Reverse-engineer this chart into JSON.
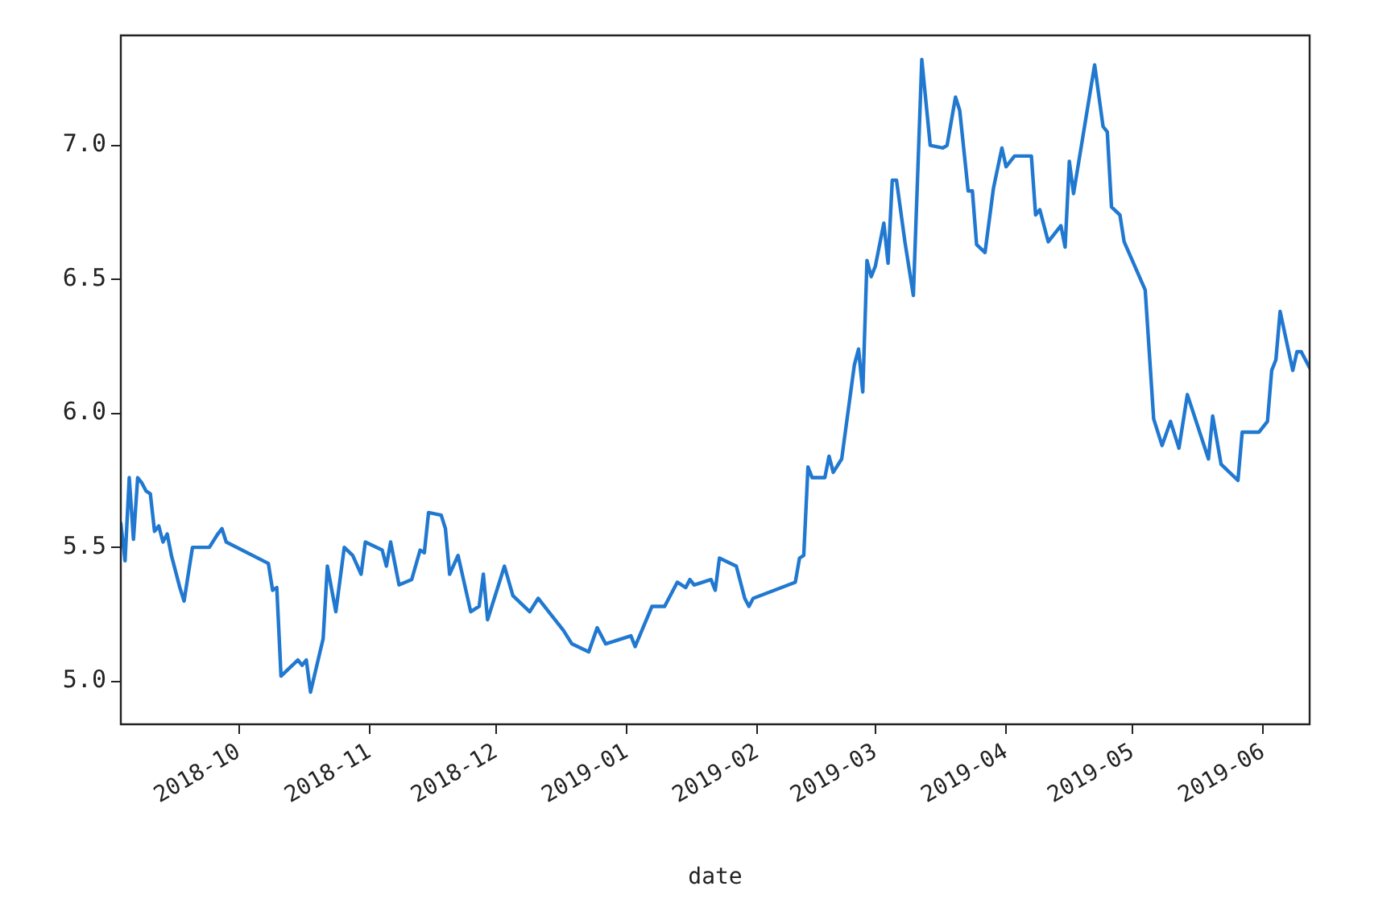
{
  "chart_data": {
    "type": "line",
    "xlabel": "date",
    "x": [
      "2018-09-03",
      "2018-09-04",
      "2018-09-05",
      "2018-09-06",
      "2018-09-07",
      "2018-09-08",
      "2018-09-09",
      "2018-09-10",
      "2018-09-11",
      "2018-09-12",
      "2018-09-13",
      "2018-09-14",
      "2018-09-15",
      "2018-09-17",
      "2018-09-18",
      "2018-09-20",
      "2018-09-24",
      "2018-09-26",
      "2018-09-27",
      "2018-09-28",
      "2018-10-08",
      "2018-10-09",
      "2018-10-10",
      "2018-10-11",
      "2018-10-13",
      "2018-10-15",
      "2018-10-16",
      "2018-10-17",
      "2018-10-18",
      "2018-10-21",
      "2018-10-22",
      "2018-10-24",
      "2018-10-26",
      "2018-10-28",
      "2018-10-30",
      "2018-10-31",
      "2018-11-04",
      "2018-11-05",
      "2018-11-06",
      "2018-11-08",
      "2018-11-11",
      "2018-11-13",
      "2018-11-14",
      "2018-11-15",
      "2018-11-18",
      "2018-11-19",
      "2018-11-20",
      "2018-11-22",
      "2018-11-25",
      "2018-11-27",
      "2018-11-28",
      "2018-11-29",
      "2018-12-03",
      "2018-12-05",
      "2018-12-09",
      "2018-12-11",
      "2018-12-12",
      "2018-12-17",
      "2018-12-19",
      "2018-12-23",
      "2018-12-25",
      "2018-12-27",
      "2019-01-02",
      "2019-01-03",
      "2019-01-07",
      "2019-01-10",
      "2019-01-13",
      "2019-01-15",
      "2019-01-16",
      "2019-01-17",
      "2019-01-21",
      "2019-01-22",
      "2019-01-23",
      "2019-01-27",
      "2019-01-29",
      "2019-01-30",
      "2019-01-31",
      "2019-02-10",
      "2019-02-11",
      "2019-02-12",
      "2019-02-13",
      "2019-02-14",
      "2019-02-17",
      "2019-02-18",
      "2019-02-19",
      "2019-02-21",
      "2019-02-24",
      "2019-02-25",
      "2019-02-26",
      "2019-02-27",
      "2019-02-28",
      "2019-03-01",
      "2019-03-03",
      "2019-03-04",
      "2019-03-05",
      "2019-03-06",
      "2019-03-08",
      "2019-03-10",
      "2019-03-12",
      "2019-03-14",
      "2019-03-17",
      "2019-03-18",
      "2019-03-20",
      "2019-03-21",
      "2019-03-23",
      "2019-03-24",
      "2019-03-25",
      "2019-03-27",
      "2019-03-29",
      "2019-03-31",
      "2019-04-01",
      "2019-04-03",
      "2019-04-07",
      "2019-04-08",
      "2019-04-09",
      "2019-04-11",
      "2019-04-14",
      "2019-04-15",
      "2019-04-16",
      "2019-04-17",
      "2019-04-22",
      "2019-04-24",
      "2019-04-25",
      "2019-04-26",
      "2019-04-28",
      "2019-04-29",
      "2019-05-04",
      "2019-05-06",
      "2019-05-08",
      "2019-05-10",
      "2019-05-12",
      "2019-05-14",
      "2019-05-19",
      "2019-05-20",
      "2019-05-22",
      "2019-05-26",
      "2019-05-27",
      "2019-05-31",
      "2019-06-02",
      "2019-06-03",
      "2019-06-04",
      "2019-06-05",
      "2019-06-08",
      "2019-06-09",
      "2019-06-10",
      "2019-06-12"
    ],
    "series": [
      {
        "color": "#2078d0",
        "values": [
          5.59,
          5.45,
          5.76,
          5.53,
          5.76,
          5.74,
          5.71,
          5.7,
          5.56,
          5.58,
          5.52,
          5.55,
          5.47,
          5.35,
          5.3,
          5.5,
          5.5,
          5.55,
          5.57,
          5.52,
          5.44,
          5.34,
          5.35,
          5.02,
          5.05,
          5.08,
          5.06,
          5.08,
          4.96,
          5.16,
          5.43,
          5.26,
          5.5,
          5.47,
          5.4,
          5.52,
          5.49,
          5.43,
          5.52,
          5.36,
          5.38,
          5.49,
          5.48,
          5.63,
          5.62,
          5.57,
          5.4,
          5.47,
          5.26,
          5.28,
          5.4,
          5.23,
          5.43,
          5.32,
          5.26,
          5.31,
          5.29,
          5.19,
          5.14,
          5.11,
          5.2,
          5.14,
          5.17,
          5.13,
          5.28,
          5.28,
          5.37,
          5.35,
          5.38,
          5.36,
          5.38,
          5.34,
          5.46,
          5.43,
          5.31,
          5.28,
          5.31,
          5.37,
          5.46,
          5.47,
          5.8,
          5.76,
          5.76,
          5.84,
          5.78,
          5.83,
          6.18,
          6.24,
          6.08,
          6.57,
          6.51,
          6.55,
          6.71,
          6.56,
          6.87,
          6.87,
          6.64,
          6.44,
          7.32,
          7.0,
          6.99,
          7.0,
          7.18,
          7.13,
          6.83,
          6.83,
          6.63,
          6.6,
          6.84,
          6.99,
          6.92,
          6.96,
          6.96,
          6.74,
          6.76,
          6.64,
          6.7,
          6.62,
          6.94,
          6.82,
          7.3,
          7.07,
          7.05,
          6.77,
          6.74,
          6.64,
          6.46,
          5.98,
          5.88,
          5.97,
          5.87,
          6.07,
          5.83,
          5.99,
          5.81,
          5.75,
          5.93,
          5.93,
          5.97,
          6.16,
          6.2,
          6.38,
          6.16,
          6.23,
          6.23,
          6.17
        ]
      }
    ],
    "xlim": [
      "2018-09-03",
      "2019-06-12"
    ],
    "xticks": [
      "2018-10",
      "2018-11",
      "2018-12",
      "2019-01",
      "2019-02",
      "2019-03",
      "2019-04",
      "2019-05",
      "2019-06"
    ],
    "ylim": [
      4.84,
      7.41
    ],
    "yticks": [
      {
        "value": 5,
        "label": "5.0"
      },
      {
        "value": 5.5,
        "label": "5.5"
      },
      {
        "value": 6,
        "label": "6.0"
      },
      {
        "value": 6.5,
        "label": "6.5"
      },
      {
        "value": 7,
        "label": "7.0"
      }
    ],
    "grid": false,
    "legend": false,
    "marker": "none",
    "line_style": "solid"
  }
}
